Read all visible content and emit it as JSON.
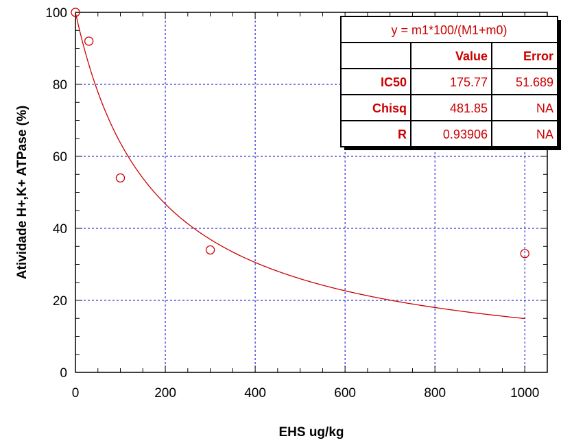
{
  "chart_data": {
    "type": "scatter",
    "title": "",
    "xlabel": "EHS ug/kg",
    "ylabel": "Atividade H+,K+ ATPase (%)",
    "xlim": [
      0,
      1050
    ],
    "ylim": [
      0,
      100
    ],
    "x_ticks": [
      0,
      200,
      400,
      600,
      800,
      1000
    ],
    "y_ticks": [
      0,
      20,
      40,
      60,
      80,
      100
    ],
    "grid": true,
    "series": [
      {
        "points": [
          {
            "x": 0,
            "y": 100
          },
          {
            "x": 30,
            "y": 92
          },
          {
            "x": 100,
            "y": 54
          },
          {
            "x": 300,
            "y": 34
          },
          {
            "x": 1000,
            "y": 33
          }
        ],
        "color": "#cc0000",
        "marker": "open-circle"
      }
    ],
    "fit": {
      "equation": "y = m1*100/(M1+m0)",
      "ic50": 175.77,
      "x_range": [
        0,
        1000
      ],
      "color": "#cc0000"
    },
    "table": {
      "header": [
        "",
        "Value",
        "Error"
      ],
      "rows": [
        [
          "IC50",
          "175.77",
          "51.689"
        ],
        [
          "Chisq",
          "481.85",
          "NA"
        ],
        [
          "R",
          "0.93906",
          "NA"
        ]
      ]
    },
    "colors": {
      "grid": "#0000cc",
      "data": "#cc0000",
      "table_border": "#000000"
    }
  }
}
